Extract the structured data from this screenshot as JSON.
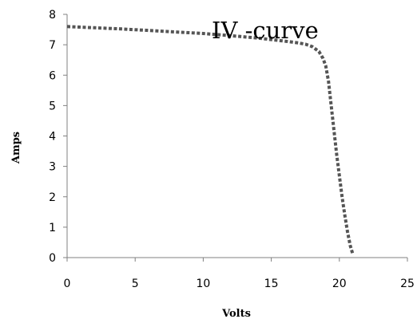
{
  "chart_data": {
    "type": "line",
    "title": "IV -curve",
    "xlabel": "Volts",
    "ylabel": "Amps",
    "xlim": [
      0,
      25
    ],
    "ylim": [
      0,
      8
    ],
    "xticks": [
      0,
      5,
      10,
      15,
      20,
      25
    ],
    "yticks": [
      0,
      1,
      2,
      3,
      4,
      5,
      6,
      7,
      8
    ],
    "grid": false,
    "legend": "none",
    "series": [
      {
        "line_style": "dotted",
        "color": "#555555",
        "x": [
          0,
          2,
          4,
          6,
          8,
          10,
          12,
          14,
          16,
          17,
          17.5,
          18,
          18.5,
          18.8,
          19,
          19.2,
          19.4,
          19.6,
          19.8,
          20,
          20.2,
          20.4,
          20.6,
          20.8,
          21
        ],
        "y": [
          7.6,
          7.56,
          7.52,
          7.47,
          7.42,
          7.37,
          7.3,
          7.22,
          7.12,
          7.06,
          7.02,
          6.94,
          6.78,
          6.55,
          6.3,
          5.8,
          5.0,
          4.2,
          3.4,
          2.7,
          2.0,
          1.4,
          0.85,
          0.4,
          0.1
        ]
      }
    ]
  }
}
